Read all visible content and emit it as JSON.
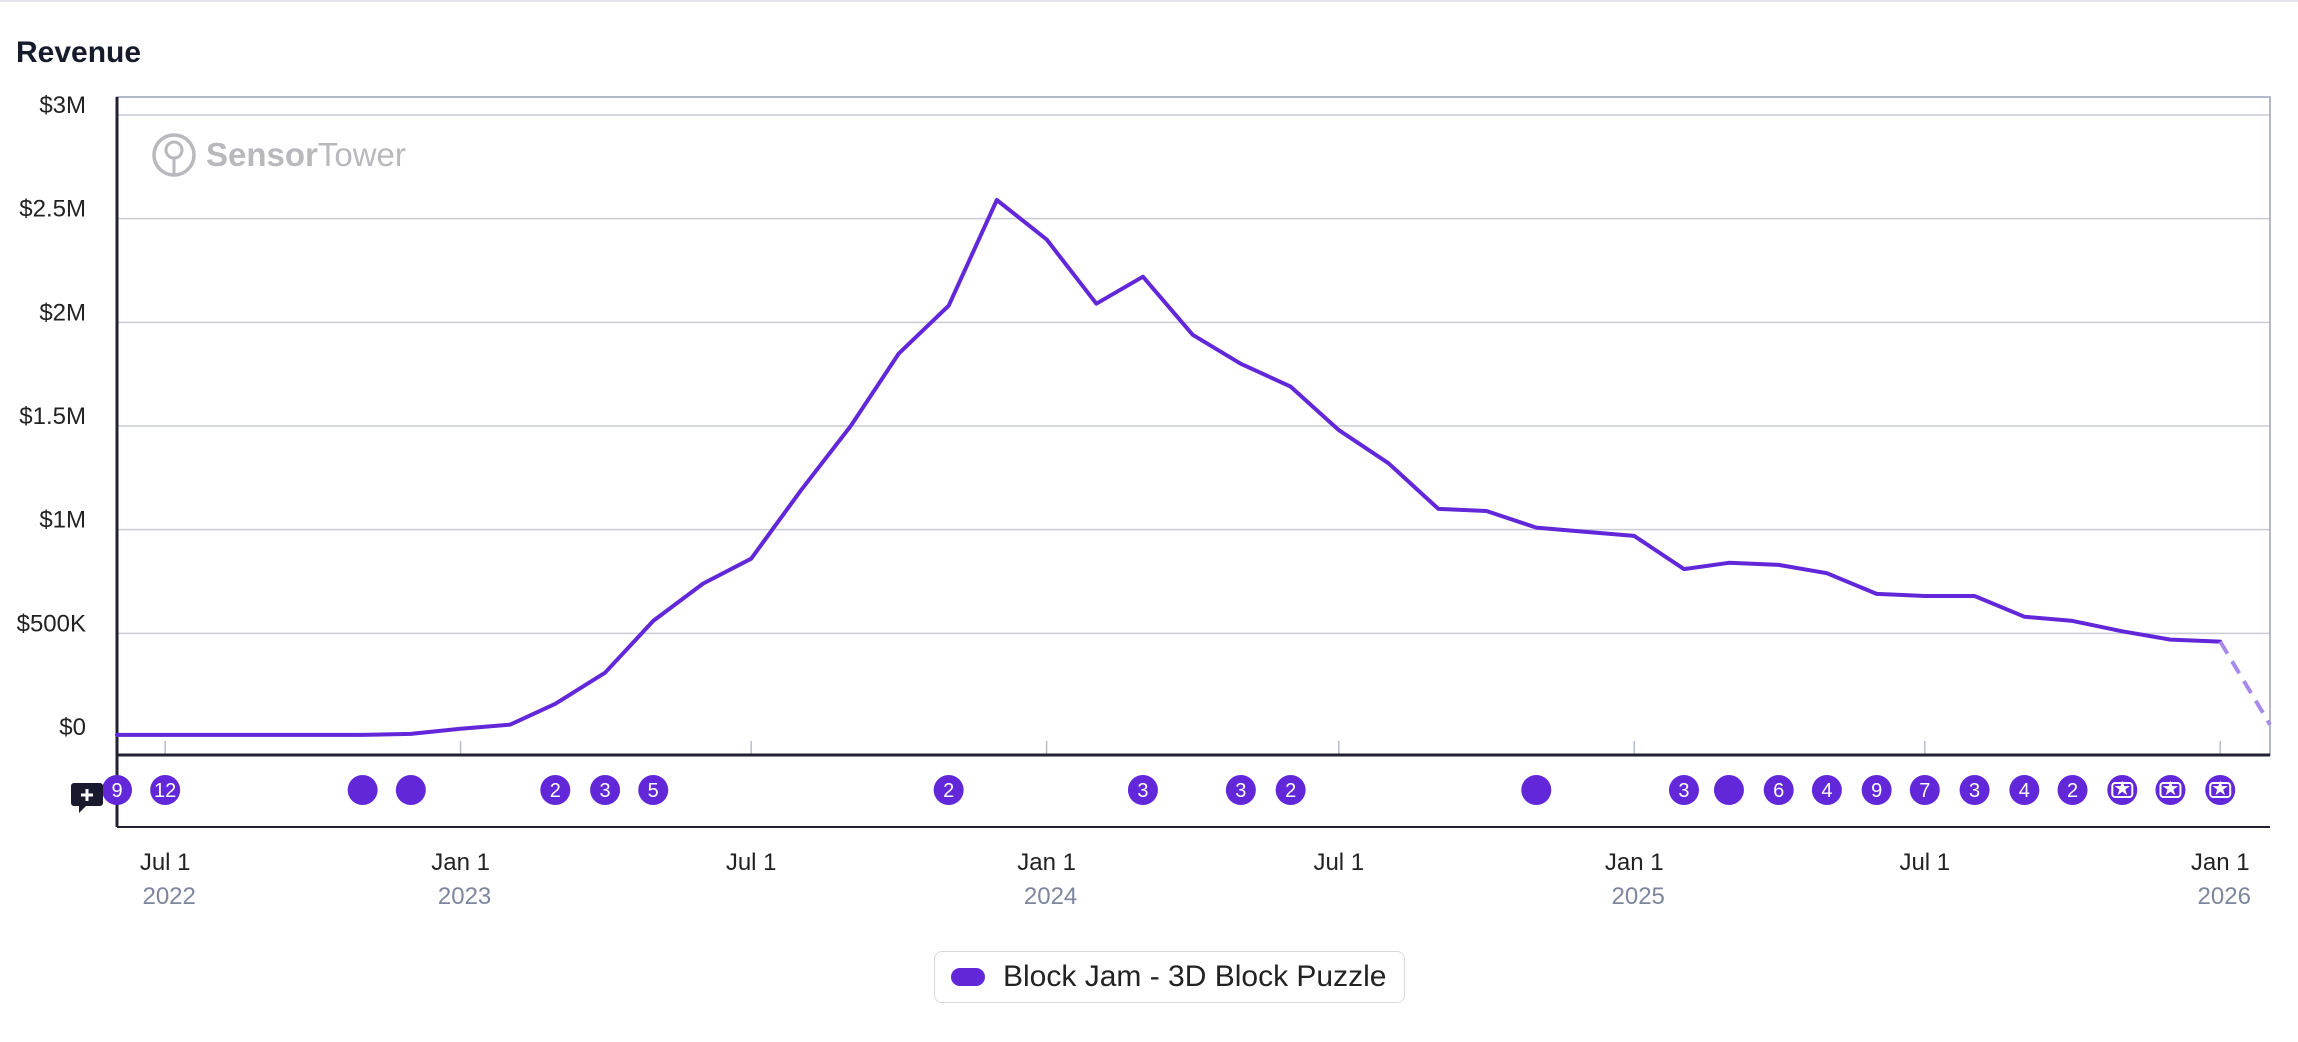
{
  "title": "Revenue",
  "watermark": "SensorTower",
  "watermark_parts": [
    "Sensor",
    "Tower"
  ],
  "colors": {
    "series": "#6127d9",
    "forecast": "#a78bea",
    "grid": "#c9ccd6",
    "axis": "#222233"
  },
  "legend": {
    "label": "Block Jam - 3D Block Puzzle"
  },
  "add_note_icon": "comment-plus-icon",
  "chart_data": {
    "type": "line",
    "title": "Revenue",
    "xlabel": "",
    "ylabel": "",
    "ylim": [
      0,
      3000000
    ],
    "yticks": [
      {
        "value": 0,
        "label": "$0"
      },
      {
        "value": 500000,
        "label": "$500K"
      },
      {
        "value": 1000000,
        "label": "$1M"
      },
      {
        "value": 1500000,
        "label": "$1.5M"
      },
      {
        "value": 2000000,
        "label": "$2M"
      },
      {
        "value": 2500000,
        "label": "$2.5M"
      },
      {
        "value": 3000000,
        "label": "$3M"
      }
    ],
    "xlim": [
      "2022-06-01",
      "2026-02-01"
    ],
    "xticks": [
      {
        "date": "2022-07-01",
        "label": "Jul 1",
        "year": "2022"
      },
      {
        "date": "2023-01-01",
        "label": "Jan 1",
        "year": "2023"
      },
      {
        "date": "2023-07-01",
        "label": "Jul 1",
        "year": ""
      },
      {
        "date": "2024-01-01",
        "label": "Jan 1",
        "year": "2024"
      },
      {
        "date": "2024-07-01",
        "label": "Jul 1",
        "year": ""
      },
      {
        "date": "2025-01-01",
        "label": "Jan 1",
        "year": "2025"
      },
      {
        "date": "2025-07-01",
        "label": "Jul 1",
        "year": ""
      },
      {
        "date": "2026-01-01",
        "label": "Jan 1",
        "year": "2026"
      }
    ],
    "series": [
      {
        "name": "Block Jam - 3D Block Puzzle",
        "dates": [
          "2022-06-01",
          "2022-07-01",
          "2022-08-01",
          "2022-09-01",
          "2022-10-01",
          "2022-11-01",
          "2022-12-01",
          "2023-01-01",
          "2023-02-01",
          "2023-03-01",
          "2023-04-01",
          "2023-05-01",
          "2023-06-01",
          "2023-07-01",
          "2023-08-01",
          "2023-09-01",
          "2023-10-01",
          "2023-11-01",
          "2023-12-01",
          "2024-01-01",
          "2024-02-01",
          "2024-03-01",
          "2024-04-01",
          "2024-05-01",
          "2024-06-01",
          "2024-07-01",
          "2024-08-01",
          "2024-09-01",
          "2024-10-01",
          "2024-11-01",
          "2024-12-01",
          "2025-01-01",
          "2025-02-01",
          "2025-03-01",
          "2025-04-01",
          "2025-05-01",
          "2025-06-01",
          "2025-07-01",
          "2025-08-01",
          "2025-09-01",
          "2025-10-01",
          "2025-11-01",
          "2025-12-01",
          "2026-01-01"
        ],
        "values": [
          10000,
          10000,
          10000,
          10000,
          10000,
          10000,
          15000,
          40000,
          60000,
          160000,
          310000,
          560000,
          740000,
          860000,
          1190000,
          1500000,
          1850000,
          2080000,
          2590000,
          2400000,
          2090000,
          2220000,
          1940000,
          1800000,
          1690000,
          1480000,
          1320000,
          1100000,
          1090000,
          1010000,
          990000,
          970000,
          810000,
          840000,
          830000,
          790000,
          690000,
          680000,
          680000,
          580000,
          560000,
          510000,
          470000,
          460000
        ]
      }
    ],
    "forecast": {
      "dates": [
        "2026-01-01",
        "2026-02-01"
      ],
      "values": [
        460000,
        60000
      ]
    },
    "annotations": [
      {
        "date": "2022-06-01",
        "label": "9"
      },
      {
        "date": "2022-07-01",
        "label": "12"
      },
      {
        "date": "2022-11-01",
        "label": ""
      },
      {
        "date": "2022-12-01",
        "label": ""
      },
      {
        "date": "2023-03-01",
        "label": "2"
      },
      {
        "date": "2023-04-01",
        "label": "3"
      },
      {
        "date": "2023-05-01",
        "label": "5"
      },
      {
        "date": "2023-11-01",
        "label": "2"
      },
      {
        "date": "2024-03-01",
        "label": "3"
      },
      {
        "date": "2024-05-01",
        "label": "3"
      },
      {
        "date": "2024-06-01",
        "label": "2"
      },
      {
        "date": "2024-11-01",
        "label": ""
      },
      {
        "date": "2025-02-01",
        "label": "3"
      },
      {
        "date": "2025-03-01",
        "label": ""
      },
      {
        "date": "2025-04-01",
        "label": "6"
      },
      {
        "date": "2025-05-01",
        "label": "4"
      },
      {
        "date": "2025-06-01",
        "label": "9"
      },
      {
        "date": "2025-07-01",
        "label": "7"
      },
      {
        "date": "2025-08-01",
        "label": "3"
      },
      {
        "date": "2025-09-01",
        "label": "4"
      },
      {
        "date": "2025-10-01",
        "label": "2"
      },
      {
        "date": "2025-11-01",
        "label": "",
        "icon": "star-ticket-icon"
      },
      {
        "date": "2025-12-01",
        "label": "",
        "icon": "star-ticket-icon"
      },
      {
        "date": "2026-01-01",
        "label": "",
        "icon": "star-ticket-icon"
      }
    ]
  }
}
